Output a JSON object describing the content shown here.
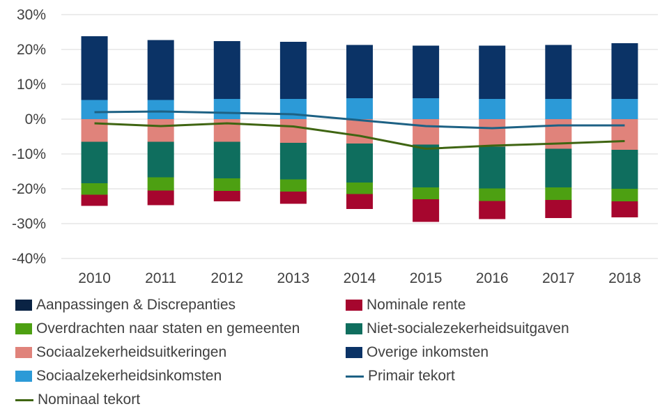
{
  "chart_data": {
    "type": "bar",
    "categories": [
      "2010",
      "2011",
      "2012",
      "2013",
      "2014",
      "2015",
      "2016",
      "2017",
      "2018"
    ],
    "ylim": [
      -40,
      30
    ],
    "yticks": [
      30,
      20,
      10,
      0,
      -10,
      -20,
      -30,
      -40
    ],
    "ytick_labels": [
      "30%",
      "20%",
      "10%",
      "0%",
      "-10%",
      "-20%",
      "-30%",
      "-40%"
    ],
    "grid": true,
    "legend_position": "bottom",
    "stack_series": [
      {
        "name": "Sociaalzekerheidsinkomsten",
        "color": "#2C9AD7",
        "values": [
          5.5,
          5.5,
          5.8,
          5.8,
          6.0,
          6.0,
          5.8,
          5.8,
          5.8
        ]
      },
      {
        "name": "Overige inkomsten",
        "color": "#0B3366",
        "values": [
          18.3,
          17.2,
          16.6,
          16.4,
          15.3,
          15.1,
          15.3,
          15.5,
          16.0
        ]
      },
      {
        "name": "Sociaalzekerheidsuitkeringen",
        "color": "#E0837B",
        "values": [
          -6.5,
          -6.5,
          -6.5,
          -6.8,
          -7.0,
          -7.3,
          -7.9,
          -8.5,
          -8.8
        ]
      },
      {
        "name": "Niet-socialezekerheidsuitgaven",
        "color": "#0F6E5E",
        "values": [
          -11.9,
          -10.2,
          -10.5,
          -10.5,
          -11.2,
          -12.3,
          -12.0,
          -11.1,
          -11.2
        ]
      },
      {
        "name": "Overdrachten naar staten en gemeenten",
        "color": "#4DA012",
        "values": [
          -3.3,
          -3.8,
          -3.6,
          -3.5,
          -3.3,
          -3.4,
          -3.6,
          -3.6,
          -3.6
        ]
      },
      {
        "name": "Nominale rente",
        "color": "#A6062E",
        "values": [
          -3.2,
          -4.2,
          -3.0,
          -3.5,
          -4.3,
          -6.5,
          -5.2,
          -5.2,
          -4.6
        ]
      },
      {
        "name": "Aanpassingen & Discrepanties",
        "color": "#0A2344",
        "values": [
          0,
          0,
          0,
          0,
          0,
          0,
          0,
          0,
          0
        ]
      }
    ],
    "line_series": [
      {
        "name": "Primair tekort",
        "color": "#1D6184",
        "values": [
          2.0,
          2.2,
          1.8,
          1.4,
          -0.3,
          -2.0,
          -2.6,
          -1.8,
          -1.8
        ]
      },
      {
        "name": "Nominaal tekort",
        "color": "#3F6512",
        "values": [
          -1.2,
          -2.0,
          -1.2,
          -2.1,
          -4.8,
          -8.5,
          -7.6,
          -7.0,
          -6.3
        ]
      }
    ]
  },
  "legend": [
    {
      "label": "Aanpassingen & Discrepanties",
      "kind": "box",
      "color": "#0A2344"
    },
    {
      "label": "Nominale rente",
      "kind": "box",
      "color": "#A6062E"
    },
    {
      "label": "Overdrachten naar staten en gemeenten",
      "kind": "box",
      "color": "#4DA012"
    },
    {
      "label": "Niet-socialezekerheidsuitgaven",
      "kind": "box",
      "color": "#0F6E5E"
    },
    {
      "label": "Sociaalzekerheidsuitkeringen",
      "kind": "box",
      "color": "#E0837B"
    },
    {
      "label": "Overige inkomsten",
      "kind": "box",
      "color": "#0B3366"
    },
    {
      "label": "Sociaalzekerheidsinkomsten",
      "kind": "box",
      "color": "#2C9AD7"
    },
    {
      "label": "Primair tekort",
      "kind": "line",
      "color": "#1D6184"
    },
    {
      "label": "Nominaal tekort",
      "kind": "line",
      "color": "#3F6512"
    }
  ]
}
